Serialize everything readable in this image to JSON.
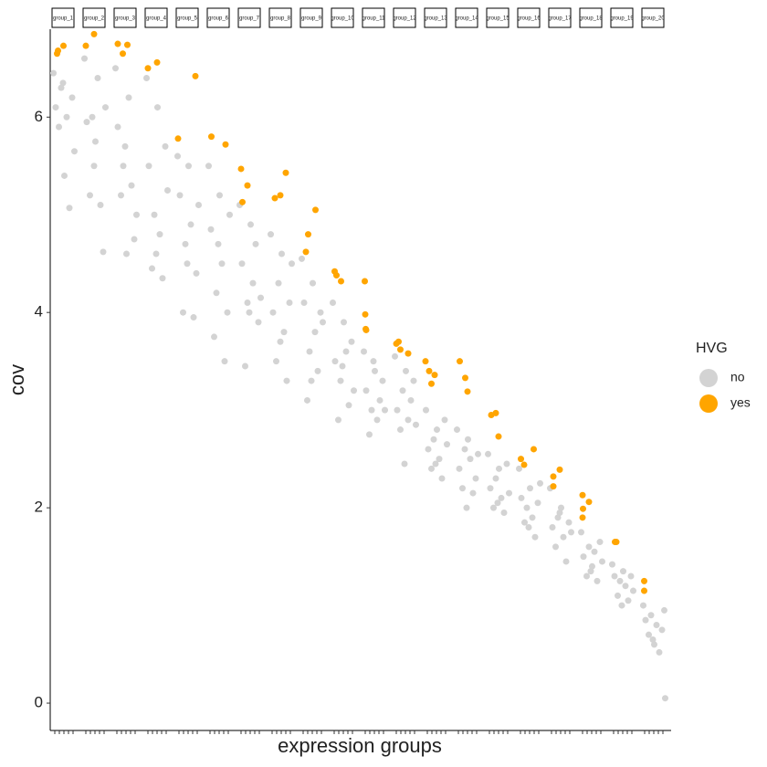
{
  "chart_data": {
    "type": "faceted-strip",
    "x_label": "expression groups",
    "y_label": "cov",
    "ylim": [
      -0.28,
      6.9
    ],
    "yticks": [
      0,
      2,
      4,
      6
    ],
    "xlim": [
      0.4,
      5.6
    ],
    "xticks": [
      1,
      2,
      3,
      4,
      5
    ],
    "legend_title": "HVG",
    "legend": [
      {
        "name": "no",
        "color": "#d3d3d3"
      },
      {
        "name": "yes",
        "color": "#ffa500"
      }
    ],
    "facets": [
      {
        "label": "group_1",
        "no": {
          "x": [
            0.7,
            1.2,
            1.9,
            2.4,
            3.1,
            3.6,
            4.2,
            4.8,
            5.3,
            2.8
          ],
          "y": [
            6.45,
            6.1,
            5.9,
            6.3,
            5.4,
            6.0,
            5.07,
            6.2,
            5.65,
            6.35
          ]
        },
        "yes": {
          "x": [
            1.5,
            1.7,
            2.9
          ],
          "y": [
            6.65,
            6.68,
            6.73
          ]
        }
      },
      {
        "label": "group_2",
        "no": {
          "x": [
            0.7,
            1.2,
            1.9,
            2.4,
            3.1,
            3.6,
            4.2,
            4.8,
            5.3,
            2.8
          ],
          "y": [
            6.6,
            5.95,
            5.2,
            6.0,
            5.75,
            6.4,
            5.1,
            4.62,
            6.1,
            5.5
          ]
        },
        "yes": {
          "x": [
            1.0,
            2.8
          ],
          "y": [
            6.73,
            6.85
          ]
        }
      },
      {
        "label": "group_3",
        "no": {
          "x": [
            0.7,
            1.2,
            1.9,
            2.4,
            3.1,
            3.6,
            4.2,
            4.8,
            5.3,
            2.8
          ],
          "y": [
            6.5,
            5.9,
            5.2,
            5.5,
            4.6,
            6.2,
            5.3,
            4.75,
            5.0,
            5.7
          ]
        },
        "yes": {
          "x": [
            1.2,
            2.3,
            3.3
          ],
          "y": [
            6.75,
            6.65,
            6.74
          ]
        }
      },
      {
        "label": "group_4",
        "no": {
          "x": [
            0.7,
            1.2,
            1.9,
            2.4,
            3.1,
            3.6,
            4.2,
            4.8,
            5.3,
            2.8
          ],
          "y": [
            6.4,
            5.5,
            4.45,
            5.0,
            6.1,
            4.8,
            4.35,
            5.7,
            5.25,
            4.6
          ]
        },
        "yes": {
          "x": [
            1.0,
            3.0
          ],
          "y": [
            6.5,
            6.56
          ]
        }
      },
      {
        "label": "group_5",
        "no": {
          "x": [
            0.7,
            1.2,
            1.9,
            2.4,
            3.1,
            3.6,
            4.2,
            4.8,
            5.3,
            2.8
          ],
          "y": [
            5.6,
            5.2,
            4.0,
            4.7,
            5.5,
            4.9,
            3.95,
            4.4,
            5.1,
            4.5
          ]
        },
        "yes": {
          "x": [
            0.8,
            4.6
          ],
          "y": [
            5.78,
            6.42
          ]
        }
      },
      {
        "label": "group_6",
        "no": {
          "x": [
            0.7,
            1.2,
            1.9,
            2.4,
            3.1,
            3.6,
            4.2,
            4.8,
            5.3,
            2.8
          ],
          "y": [
            5.5,
            4.85,
            3.75,
            4.2,
            5.2,
            4.5,
            3.5,
            4.0,
            5.0,
            4.7
          ]
        },
        "yes": {
          "x": [
            1.3,
            4.4
          ],
          "y": [
            5.8,
            5.72
          ]
        }
      },
      {
        "label": "group_7",
        "no": {
          "x": [
            0.7,
            1.2,
            1.9,
            2.4,
            3.1,
            3.6,
            4.2,
            4.8,
            5.3,
            2.8
          ],
          "y": [
            5.1,
            4.5,
            3.45,
            4.1,
            4.9,
            4.3,
            4.7,
            3.9,
            4.15,
            4.0
          ]
        },
        "yes": {
          "x": [
            1.0,
            2.4,
            1.3
          ],
          "y": [
            5.47,
            5.3,
            5.13
          ]
        }
      },
      {
        "label": "group_8",
        "no": {
          "x": [
            0.7,
            1.2,
            1.9,
            2.4,
            3.1,
            3.6,
            4.2,
            4.8,
            5.3,
            2.8
          ],
          "y": [
            4.8,
            4.0,
            3.5,
            4.3,
            4.6,
            3.8,
            3.3,
            4.1,
            4.5,
            3.7
          ]
        },
        "yes": {
          "x": [
            1.6,
            2.8,
            4.0
          ],
          "y": [
            5.17,
            5.2,
            5.43
          ]
        }
      },
      {
        "label": "group_9",
        "no": {
          "x": [
            0.7,
            1.2,
            1.9,
            2.4,
            3.1,
            3.6,
            4.2,
            4.8,
            5.3,
            2.8
          ],
          "y": [
            4.55,
            4.1,
            3.1,
            3.6,
            4.3,
            3.8,
            3.4,
            4.0,
            3.9,
            3.3
          ]
        },
        "yes": {
          "x": [
            3.7,
            2.1,
            1.6
          ],
          "y": [
            5.05,
            4.8,
            4.62
          ]
        }
      },
      {
        "label": "group_10",
        "no": {
          "x": [
            0.7,
            1.2,
            1.9,
            2.4,
            3.1,
            3.6,
            4.2,
            4.8,
            5.3,
            2.8
          ],
          "y": [
            4.1,
            3.5,
            2.9,
            3.3,
            3.9,
            3.6,
            3.05,
            3.7,
            3.2,
            3.45
          ]
        },
        "yes": {
          "x": [
            1.1,
            1.5,
            2.5
          ],
          "y": [
            4.42,
            4.38,
            4.32
          ]
        }
      },
      {
        "label": "group_11",
        "no": {
          "x": [
            0.7,
            1.2,
            1.9,
            2.4,
            3.1,
            3.6,
            4.2,
            4.8,
            5.3,
            2.8
          ],
          "y": [
            3.6,
            3.2,
            2.75,
            3.0,
            3.4,
            2.9,
            3.1,
            3.3,
            3.0,
            3.5
          ]
        },
        "yes": {
          "x": [
            0.9,
            1.0,
            1.1,
            1.2
          ],
          "y": [
            4.32,
            3.98,
            3.83,
            3.82
          ]
        }
      },
      {
        "label": "group_12",
        "no": {
          "x": [
            0.7,
            1.2,
            1.9,
            2.4,
            3.1,
            3.6,
            4.2,
            4.8,
            5.3,
            2.8
          ],
          "y": [
            3.55,
            3.0,
            2.8,
            3.2,
            3.4,
            2.9,
            3.1,
            3.3,
            2.85,
            2.45
          ]
        },
        "yes": {
          "x": [
            1.0,
            1.5,
            1.9,
            3.6
          ],
          "y": [
            3.68,
            3.7,
            3.62,
            3.58
          ]
        }
      },
      {
        "label": "group_13",
        "no": {
          "x": [
            0.7,
            1.2,
            1.9,
            2.4,
            3.1,
            3.6,
            4.2,
            4.8,
            5.3,
            2.8
          ],
          "y": [
            3.0,
            2.6,
            2.4,
            2.7,
            2.8,
            2.5,
            2.3,
            2.9,
            2.65,
            2.45
          ]
        },
        "yes": {
          "x": [
            0.6,
            1.4,
            1.9,
            2.6
          ],
          "y": [
            3.5,
            3.4,
            3.27,
            3.36
          ]
        }
      },
      {
        "label": "group_14",
        "no": {
          "x": [
            0.7,
            1.2,
            1.9,
            2.4,
            3.1,
            3.6,
            4.2,
            4.8,
            5.3,
            2.8
          ],
          "y": [
            2.8,
            2.4,
            2.2,
            2.6,
            2.7,
            2.5,
            2.15,
            2.3,
            2.55,
            2.0
          ]
        },
        "yes": {
          "x": [
            1.3,
            2.5,
            3.0
          ],
          "y": [
            3.5,
            3.33,
            3.19
          ]
        }
      },
      {
        "label": "group_15",
        "no": {
          "x": [
            0.7,
            1.2,
            1.9,
            2.4,
            3.1,
            3.6,
            4.2,
            4.8,
            5.3,
            2.8
          ],
          "y": [
            2.55,
            2.2,
            2.0,
            2.3,
            2.4,
            2.1,
            1.95,
            2.45,
            2.15,
            2.05
          ]
        },
        "yes": {
          "x": [
            1.4,
            2.4,
            3.0
          ],
          "y": [
            2.95,
            2.97,
            2.73
          ]
        }
      },
      {
        "label": "group_16",
        "no": {
          "x": [
            0.7,
            1.2,
            1.9,
            2.4,
            3.1,
            3.6,
            4.2,
            4.8,
            5.3,
            2.8
          ],
          "y": [
            2.4,
            2.1,
            1.85,
            2.0,
            2.2,
            1.9,
            1.7,
            2.05,
            2.25,
            1.8
          ]
        },
        "yes": {
          "x": [
            1.1,
            1.8,
            3.9
          ],
          "y": [
            2.5,
            2.44,
            2.6
          ]
        }
      },
      {
        "label": "group_17",
        "no": {
          "x": [
            0.7,
            1.2,
            1.9,
            2.4,
            3.1,
            3.6,
            4.2,
            4.8,
            5.3,
            2.8
          ],
          "y": [
            2.2,
            1.8,
            1.6,
            1.9,
            2.0,
            1.7,
            1.45,
            1.85,
            1.75,
            1.95
          ]
        },
        "yes": {
          "x": [
            1.4,
            1.4,
            2.8
          ],
          "y": [
            2.32,
            2.22,
            2.39
          ]
        }
      },
      {
        "label": "group_18",
        "no": {
          "x": [
            0.7,
            1.2,
            1.9,
            2.4,
            3.1,
            3.6,
            4.2,
            4.8,
            5.3,
            2.8
          ],
          "y": [
            1.75,
            1.5,
            1.3,
            1.6,
            1.4,
            1.55,
            1.25,
            1.65,
            1.45,
            1.35
          ]
        },
        "yes": {
          "x": [
            1.0,
            1.1,
            2.4,
            1.0
          ],
          "y": [
            2.13,
            1.99,
            2.06,
            1.9
          ]
        }
      },
      {
        "label": "group_19",
        "no": {
          "x": [
            0.7,
            1.2,
            1.9,
            2.4,
            3.1,
            3.6,
            4.2,
            4.8,
            5.3,
            2.8
          ],
          "y": [
            1.42,
            1.3,
            1.1,
            1.25,
            1.35,
            1.2,
            1.05,
            1.3,
            1.15,
            1.0
          ]
        },
        "yes": {
          "x": [
            1.3,
            1.6
          ],
          "y": [
            1.65,
            1.65
          ]
        }
      },
      {
        "label": "group_20",
        "no": {
          "x": [
            0.7,
            1.2,
            1.9,
            2.4,
            3.1,
            3.6,
            4.2,
            4.8,
            5.3,
            2.8,
            5.5
          ],
          "y": [
            1.0,
            0.85,
            0.7,
            0.9,
            0.6,
            0.8,
            0.52,
            0.75,
            0.95,
            0.65,
            0.05
          ]
        },
        "yes": {
          "x": [
            0.9,
            0.9
          ],
          "y": [
            1.25,
            1.15
          ]
        }
      }
    ]
  }
}
